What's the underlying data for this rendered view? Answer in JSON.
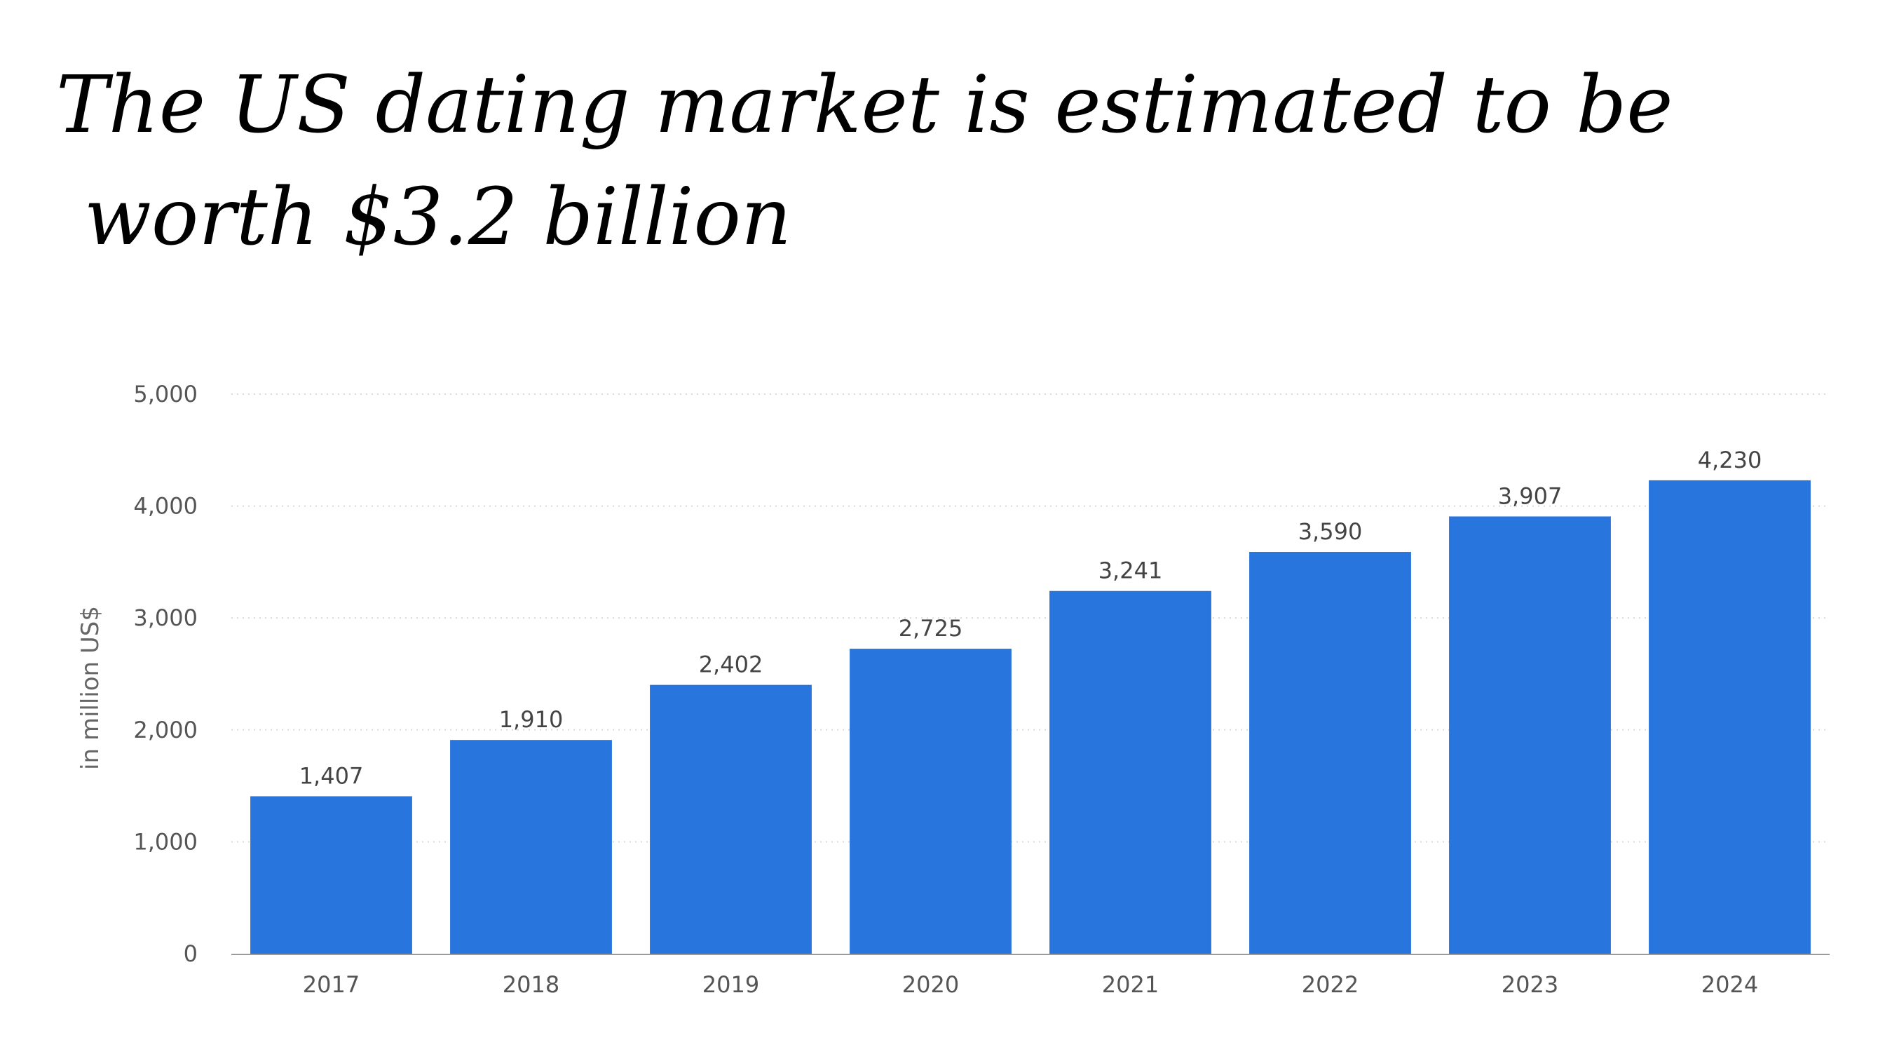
{
  "headline": {
    "line1": "The US dating market is estimated to be",
    "line2": "worth $3.2 billion"
  },
  "chart_data": {
    "type": "bar",
    "title": "",
    "xlabel": "",
    "ylabel": "in million US$",
    "categories": [
      "2017",
      "2018",
      "2019",
      "2020",
      "2021",
      "2022",
      "2023",
      "2024"
    ],
    "values": [
      1407,
      1910,
      2402,
      2725,
      3241,
      3590,
      3907,
      4230
    ],
    "value_labels": [
      "1,407",
      "1,910",
      "2,402",
      "2,725",
      "3,241",
      "3,590",
      "3,907",
      "4,230"
    ],
    "ylim": [
      0,
      5000
    ],
    "yticks": [
      0,
      1000,
      2000,
      3000,
      4000,
      5000
    ],
    "ytick_labels": [
      "0",
      "1,000",
      "2,000",
      "3,000",
      "4,000",
      "5,000"
    ],
    "grid": true,
    "legend": "none",
    "bar_color": "#2975DE"
  }
}
